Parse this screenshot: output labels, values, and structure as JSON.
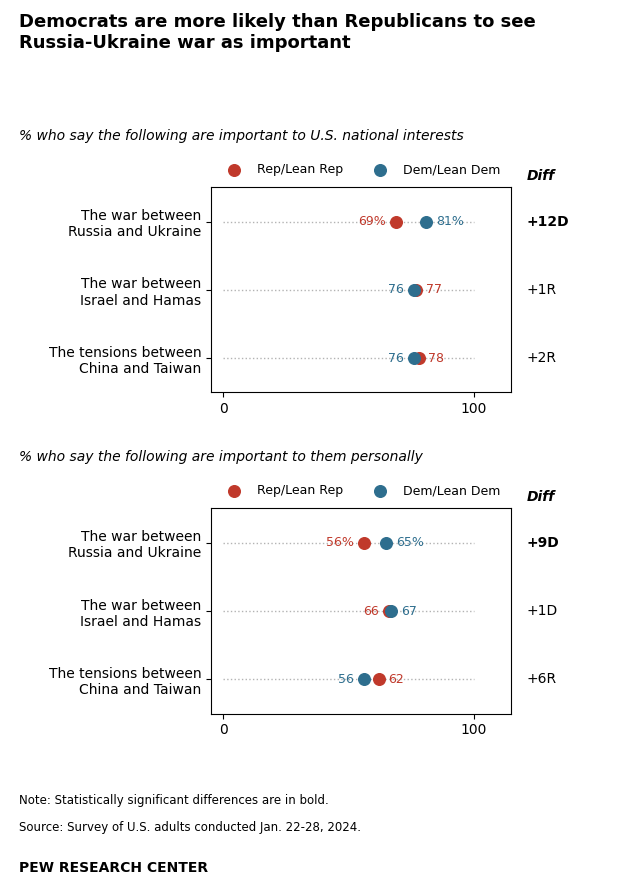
{
  "chart_data": [
    {
      "type": "dot",
      "subtitle": "% who say the following are important to U.S. national interests",
      "categories": [
        "The war between\nRussia and Ukraine",
        "The war between\nIsrael and Hamas",
        "The tensions between\nChina and Taiwan"
      ],
      "series": [
        {
          "name": "Rep/Lean Rep",
          "color": "#C0392B",
          "values": [
            69,
            77,
            78
          ],
          "value_labels": [
            "69%",
            "77",
            "78"
          ]
        },
        {
          "name": "Dem/Lean Dem",
          "color": "#2E6E8E",
          "values": [
            81,
            76,
            76
          ],
          "value_labels": [
            "81%",
            "76",
            "76"
          ]
        }
      ],
      "xlim": [
        -5,
        115
      ],
      "xticks": [
        0,
        100
      ],
      "data_labels": true,
      "legend": "lower center",
      "grid": false,
      "diff": {
        "title": "Diff",
        "labels": [
          "+12D",
          "+1R",
          "+2R"
        ],
        "bold": [
          true,
          false,
          false
        ]
      }
    },
    {
      "type": "dot",
      "subtitle": "% who say the following are important to them personally",
      "categories": [
        "The war between\nRussia and Ukraine",
        "The war between\nIsrael and Hamas",
        "The tensions between\nChina and Taiwan"
      ],
      "series": [
        {
          "name": "Rep/Lean Rep",
          "color": "#C0392B",
          "values": [
            56,
            66,
            62
          ],
          "value_labels": [
            "56%",
            "66",
            "62"
          ]
        },
        {
          "name": "Dem/Lean Dem",
          "color": "#2E6E8E",
          "values": [
            65,
            67,
            56
          ],
          "value_labels": [
            "65%",
            "67",
            "56"
          ]
        }
      ],
      "xlim": [
        -5,
        115
      ],
      "xticks": [
        0,
        100
      ],
      "data_labels": true,
      "legend": "lower center",
      "grid": false,
      "diff": {
        "title": "Diff",
        "labels": [
          "+9D",
          "+1D",
          "+6R"
        ],
        "bold": [
          true,
          false,
          false
        ]
      }
    }
  ],
  "title": "Democrats are more likely than Republicans to see\nRussia-Ukraine war as important",
  "annotations": [
    "Note: Statistically significant differences are in bold.",
    "Source: Survey of U.S. adults conducted Jan. 22-28, 2024.",
    "PEW RESEARCH CENTER"
  ]
}
